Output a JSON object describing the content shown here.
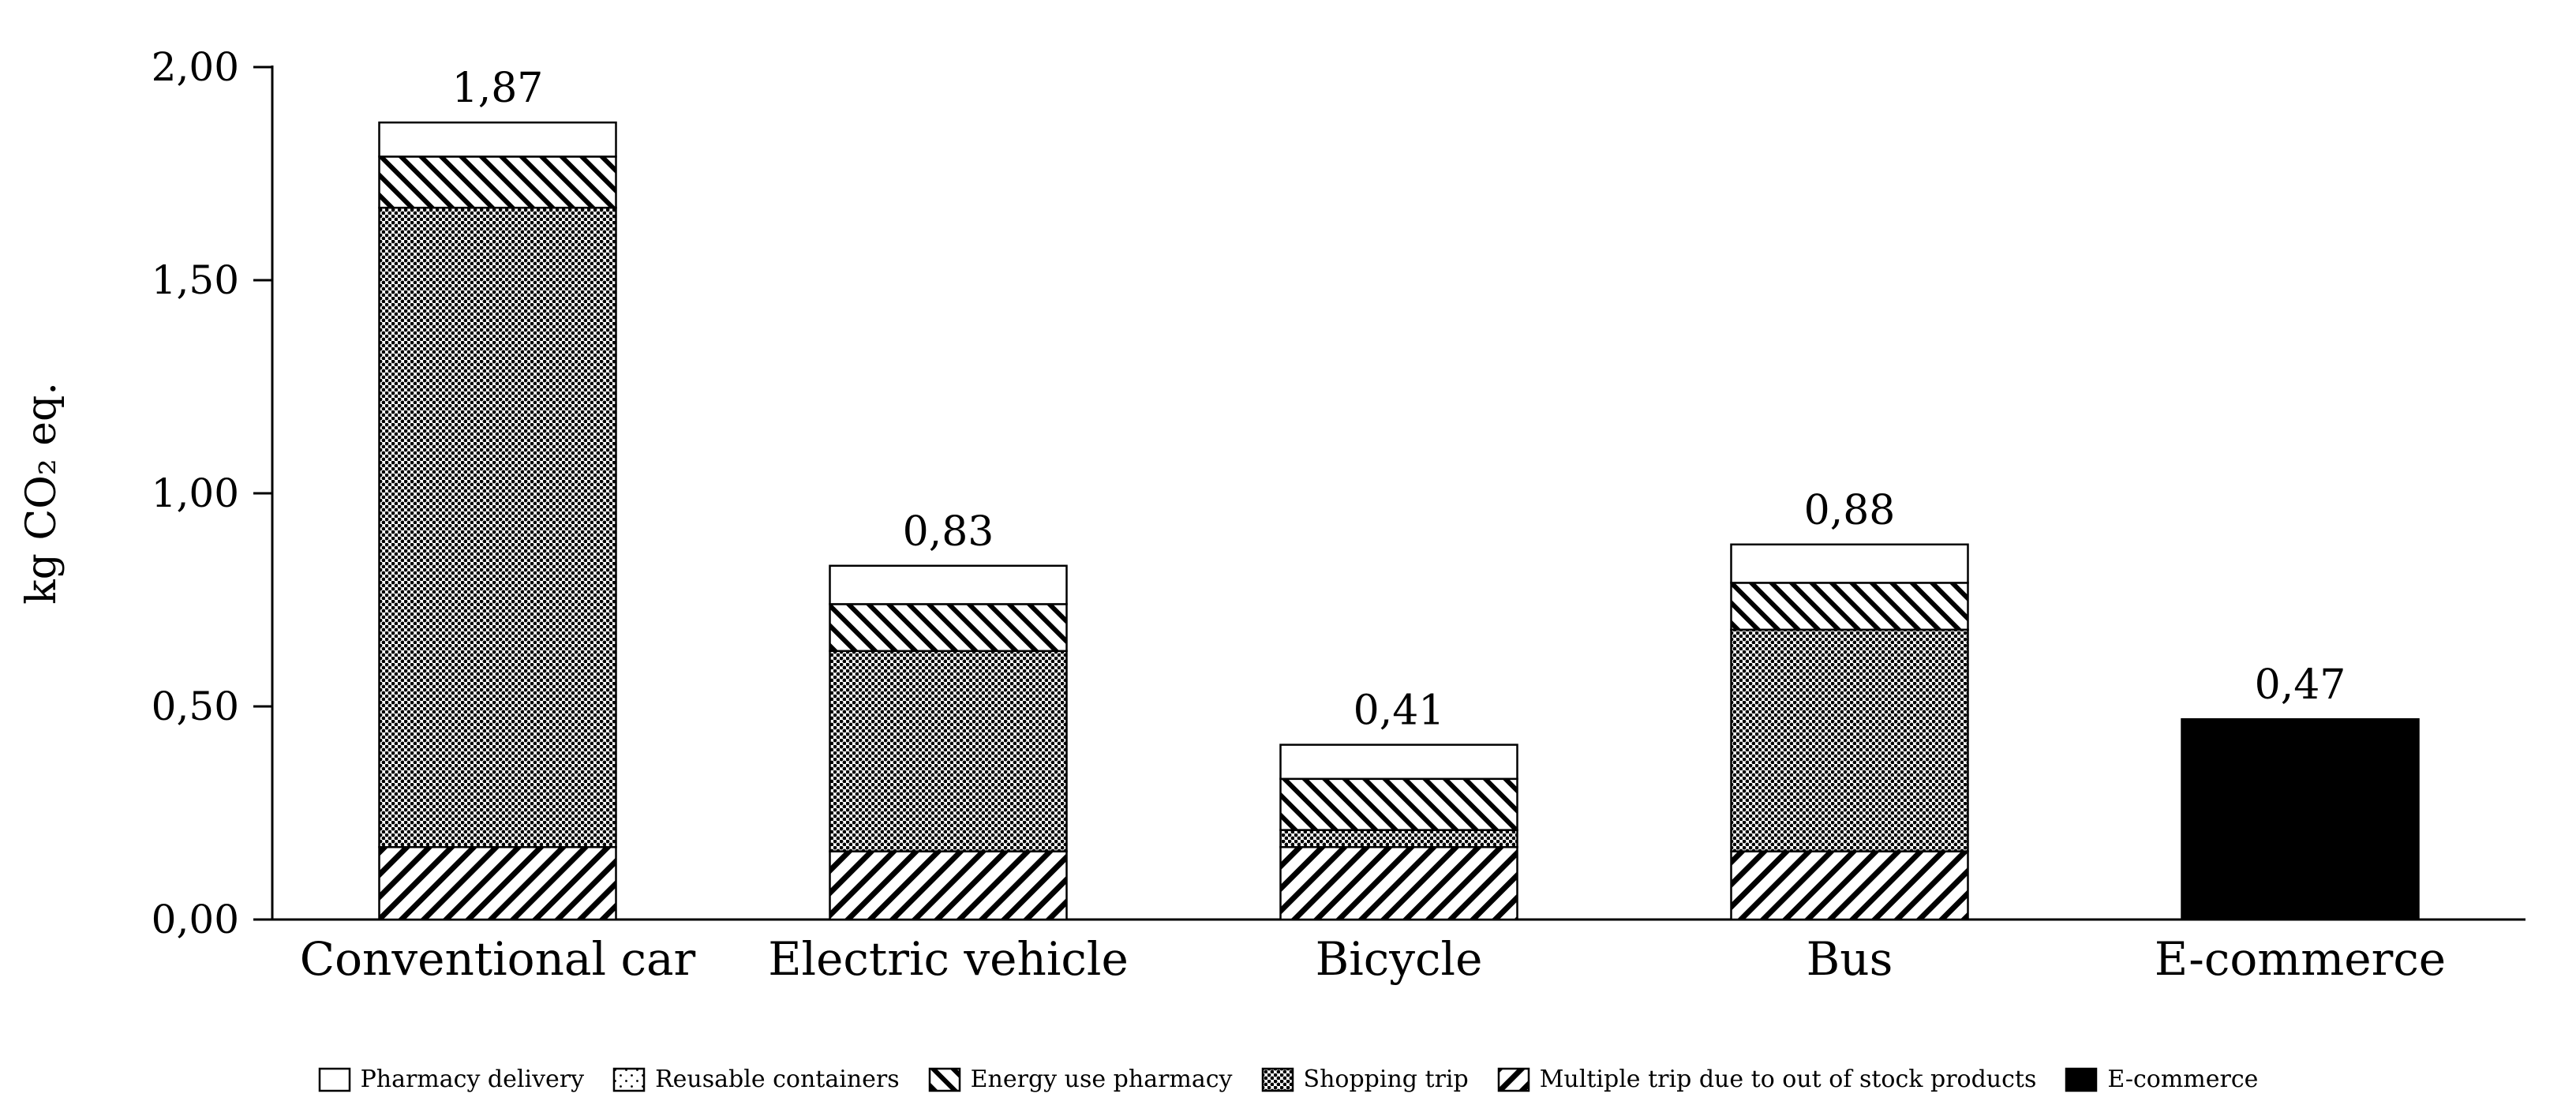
{
  "chart_data": {
    "type": "bar",
    "stacked": true,
    "title": "",
    "xlabel": "",
    "ylabel": "kg CO₂ eq.",
    "ylim": [
      0,
      2.0
    ],
    "yticks": [
      0,
      0.5,
      1.0,
      1.5,
      2.0
    ],
    "ytick_labels": [
      "0,00",
      "0,50",
      "1,00",
      "1,50",
      "2,00"
    ],
    "grid": false,
    "legend_position": "bottom",
    "categories": [
      "Conventional car",
      "Electric vehicle",
      "Bicycle",
      "Bus",
      "E-commerce"
    ],
    "series": [
      {
        "name": "Multiple trip due to out of stock products",
        "pattern": "forward-hatch",
        "values": [
          0.17,
          0.16,
          0.17,
          0.16,
          0
        ]
      },
      {
        "name": "Shopping trip",
        "pattern": "dense-dots",
        "values": [
          1.5,
          0.47,
          0.04,
          0.52,
          0
        ]
      },
      {
        "name": "Energy use pharmacy",
        "pattern": "back-hatch",
        "values": [
          0.12,
          0.11,
          0.12,
          0.11,
          0
        ]
      },
      {
        "name": "Reusable containers",
        "pattern": "sparse-dots",
        "values": [
          0,
          0,
          0,
          0,
          0
        ]
      },
      {
        "name": "Pharmacy delivery",
        "pattern": "white",
        "values": [
          0.08,
          0.09,
          0.08,
          0.09,
          0
        ]
      },
      {
        "name": "E-commerce",
        "pattern": "solid-black",
        "values": [
          0,
          0,
          0,
          0,
          0.47
        ]
      }
    ],
    "totals": [
      "1,87",
      "0,83",
      "0,41",
      "0,88",
      "0,47"
    ],
    "legend": [
      {
        "label": "Pharmacy delivery",
        "pattern": "white"
      },
      {
        "label": "Reusable containers",
        "pattern": "sparse-dots"
      },
      {
        "label": "Energy use pharmacy",
        "pattern": "back-hatch"
      },
      {
        "label": "Shopping trip",
        "pattern": "dense-dots"
      },
      {
        "label": "Multiple trip due to out of stock products",
        "pattern": "forward-hatch"
      },
      {
        "label": "E-commerce",
        "pattern": "solid-black"
      }
    ]
  }
}
